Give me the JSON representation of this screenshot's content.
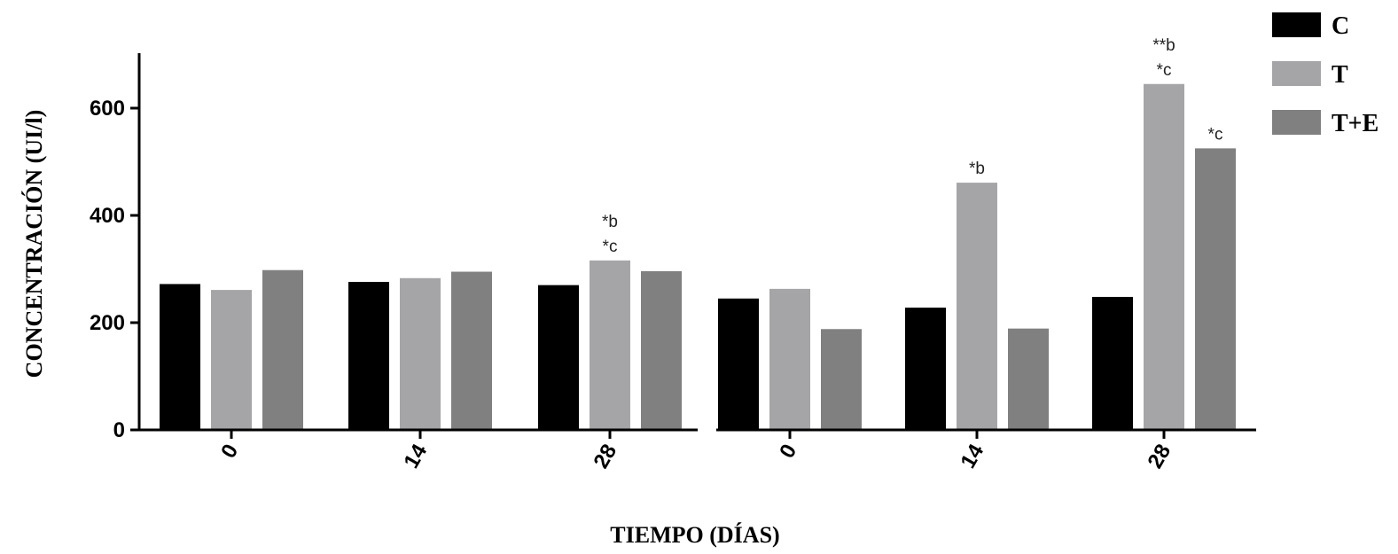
{
  "chart_data": {
    "type": "bar",
    "xlabel": "TIEMPO (DÍAS)",
    "ylabel": "CONCENTRACIÓN (UI/l)",
    "ylim": [
      0,
      700
    ],
    "yticks": [
      0,
      200,
      400,
      600
    ],
    "legend": {
      "placement": "top-right",
      "entries": [
        "C",
        "T",
        "T+E"
      ]
    },
    "colors": {
      "C": "#000000",
      "T": "#a5a5a7",
      "T+E": "#808080"
    },
    "panels": [
      {
        "categories": [
          "0",
          "14",
          "28"
        ],
        "series": [
          {
            "name": "C",
            "values": [
              272,
              276,
              270
            ]
          },
          {
            "name": "T",
            "values": [
              261,
              283,
              316
            ]
          },
          {
            "name": "T+E",
            "values": [
              298,
              295,
              296
            ]
          }
        ],
        "annotations": [
          {
            "category": "28",
            "series": "T",
            "lines": [
              "*b",
              "*c"
            ]
          }
        ]
      },
      {
        "categories": [
          "0",
          "14",
          "28"
        ],
        "series": [
          {
            "name": "C",
            "values": [
              245,
              228,
              248
            ]
          },
          {
            "name": "T",
            "values": [
              263,
              461,
              645
            ]
          },
          {
            "name": "T+E",
            "values": [
              188,
              189,
              525
            ]
          }
        ],
        "annotations": [
          {
            "category": "14",
            "series": "T",
            "lines": [
              "*b"
            ]
          },
          {
            "category": "28",
            "series": "T",
            "lines": [
              "**b",
              "*c"
            ]
          },
          {
            "category": "28",
            "series": "T+E",
            "lines": [
              "*c"
            ]
          }
        ]
      }
    ]
  }
}
